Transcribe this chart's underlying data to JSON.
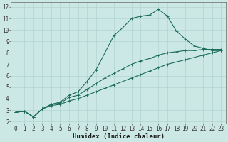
{
  "xlabel": "Humidex (Indice chaleur)",
  "bg_color": "#cce8e4",
  "line_color": "#1a6b5a",
  "grid_color": "#aacfcc",
  "xlim": [
    -0.5,
    23.5
  ],
  "ylim": [
    1.8,
    12.4
  ],
  "xticks": [
    0,
    1,
    2,
    3,
    4,
    5,
    6,
    7,
    8,
    9,
    10,
    11,
    12,
    13,
    14,
    15,
    16,
    17,
    18,
    19,
    20,
    21,
    22,
    23
  ],
  "yticks": [
    2,
    3,
    4,
    5,
    6,
    7,
    8,
    9,
    10,
    11,
    12
  ],
  "series1_x": [
    0,
    1,
    2,
    3,
    4,
    5,
    6,
    7,
    8,
    9,
    10,
    11,
    12,
    13,
    14,
    15,
    16,
    17,
    18,
    19,
    20,
    21,
    22,
    23
  ],
  "series1_y": [
    2.8,
    2.9,
    2.4,
    3.1,
    3.5,
    3.7,
    4.3,
    4.6,
    5.5,
    6.5,
    8.0,
    9.5,
    10.2,
    11.0,
    11.2,
    11.3,
    11.8,
    11.2,
    9.9,
    9.2,
    8.6,
    8.4,
    8.2,
    8.2
  ],
  "series2_x": [
    0,
    1,
    2,
    3,
    4,
    5,
    6,
    7,
    8,
    9,
    10,
    11,
    12,
    13,
    14,
    15,
    16,
    17,
    18,
    19,
    20,
    21,
    22,
    23
  ],
  "series2_y": [
    2.8,
    2.9,
    2.4,
    3.1,
    3.5,
    3.6,
    4.1,
    4.3,
    4.8,
    5.3,
    5.8,
    6.2,
    6.6,
    7.0,
    7.3,
    7.5,
    7.8,
    8.0,
    8.1,
    8.2,
    8.2,
    8.3,
    8.3,
    8.3
  ],
  "series3_x": [
    0,
    1,
    2,
    3,
    4,
    5,
    6,
    7,
    8,
    9,
    10,
    11,
    12,
    13,
    14,
    15,
    16,
    17,
    18,
    19,
    20,
    21,
    22,
    23
  ],
  "series3_y": [
    2.8,
    2.9,
    2.4,
    3.1,
    3.4,
    3.5,
    3.8,
    4.0,
    4.3,
    4.6,
    4.9,
    5.2,
    5.5,
    5.8,
    6.1,
    6.4,
    6.7,
    7.0,
    7.2,
    7.4,
    7.6,
    7.8,
    8.0,
    8.2
  ],
  "markersize": 2.0,
  "linewidth": 0.8,
  "tick_fontsize": 5.5,
  "xlabel_fontsize": 6.5
}
